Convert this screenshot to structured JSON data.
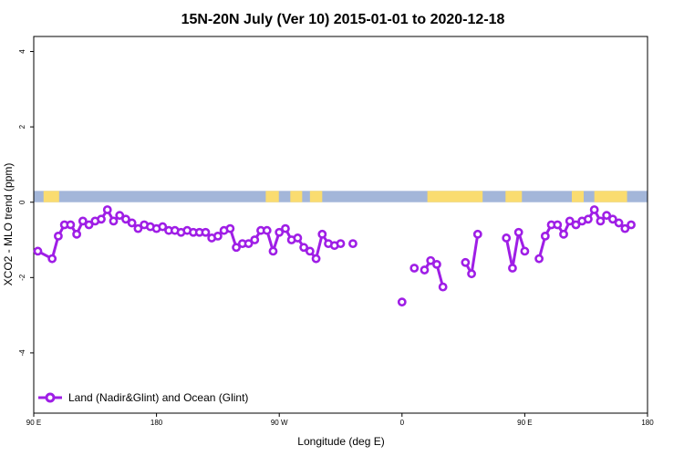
{
  "chart_data": {
    "type": "line",
    "title": "15N-20N July (Ver 10)   2015-01-01 to 2020-12-18",
    "xlabel": "Longitude (deg E)",
    "ylabel": "XCO2 - MLO trend (ppm)",
    "xlim": [
      90,
      240
    ],
    "ylim": [
      -5.6,
      4.4
    ],
    "x_ticks": [
      {
        "value": 90,
        "label": "90 E"
      },
      {
        "value": 120,
        "label": "180"
      },
      {
        "value": 150,
        "label": "90 W"
      },
      {
        "value": 180,
        "label": "0"
      },
      {
        "value": 210,
        "label": "90 E"
      },
      {
        "value": 240,
        "label": "180"
      }
    ],
    "y_ticks": [
      {
        "value": -4,
        "label": "-4"
      },
      {
        "value": -2,
        "label": "-2"
      },
      {
        "value": 0,
        "label": "0"
      },
      {
        "value": 2,
        "label": "2"
      },
      {
        "value": 4,
        "label": "4"
      }
    ],
    "grid": false,
    "legend_position": "bottom-left",
    "land_band": {
      "y_range": [
        0,
        0.3
      ],
      "ocean_color": "#a3b6d9",
      "land_color": "#fadc70",
      "land_x": [
        [
          92.4,
          96.2
        ],
        [
          146.7,
          149.9
        ],
        [
          152.7,
          155.6
        ],
        [
          157.5,
          160.5
        ],
        [
          186.2,
          199.7
        ],
        [
          205.3,
          209.3
        ],
        [
          221.5,
          224.4
        ],
        [
          227,
          235
        ]
      ]
    },
    "series": [
      {
        "name": "Land (Nadir&Glint) and Ocean (Glint)",
        "color": "#9f1ee6",
        "segments": [
          [
            [
              91,
              -1.3
            ],
            [
              94.5,
              -1.5
            ],
            [
              96,
              -0.9
            ],
            [
              97.5,
              -0.6
            ],
            [
              99,
              -0.6
            ],
            [
              100.5,
              -0.85
            ],
            [
              102,
              -0.5
            ],
            [
              103.5,
              -0.6
            ],
            [
              105,
              -0.5
            ],
            [
              106.5,
              -0.45
            ],
            [
              108,
              -0.2
            ],
            [
              109.5,
              -0.5
            ],
            [
              111,
              -0.35
            ],
            [
              112.5,
              -0.45
            ],
            [
              114,
              -0.55
            ],
            [
              115.5,
              -0.7
            ],
            [
              117,
              -0.6
            ],
            [
              118.5,
              -0.65
            ],
            [
              120,
              -0.7
            ],
            [
              121.5,
              -0.65
            ],
            [
              123,
              -0.75
            ],
            [
              124.5,
              -0.75
            ],
            [
              126,
              -0.8
            ],
            [
              127.5,
              -0.75
            ],
            [
              129,
              -0.8
            ],
            [
              130.5,
              -0.8
            ],
            [
              132,
              -0.8
            ],
            [
              133.5,
              -0.95
            ],
            [
              135,
              -0.9
            ],
            [
              136.5,
              -0.75
            ],
            [
              138,
              -0.7
            ],
            [
              139.5,
              -1.2
            ],
            [
              141,
              -1.1
            ],
            [
              142.5,
              -1.1
            ],
            [
              144,
              -1.0
            ],
            [
              145.5,
              -0.75
            ],
            [
              147,
              -0.75
            ],
            [
              148.5,
              -1.3
            ],
            [
              150,
              -0.8
            ],
            [
              151.5,
              -0.7
            ],
            [
              153,
              -1.0
            ],
            [
              154.5,
              -0.95
            ],
            [
              156,
              -1.2
            ],
            [
              157.5,
              -1.3
            ],
            [
              159,
              -1.5
            ],
            [
              160.5,
              -0.85
            ],
            [
              162,
              -1.1
            ],
            [
              163.5,
              -1.15
            ],
            [
              165,
              -1.1
            ]
          ],
          [
            [
              168,
              -1.1
            ]
          ],
          [
            [
              180,
              -2.65
            ]
          ],
          [
            [
              183,
              -1.75
            ]
          ],
          [
            [
              185.5,
              -1.8
            ],
            [
              187,
              -1.55
            ],
            [
              188.5,
              -1.65
            ],
            [
              190,
              -2.25
            ]
          ],
          [
            [
              195.5,
              -1.6
            ],
            [
              197,
              -1.9
            ],
            [
              198.5,
              -0.85
            ]
          ],
          [
            [
              205.5,
              -0.95
            ],
            [
              207,
              -1.75
            ],
            [
              208.5,
              -0.8
            ],
            [
              210,
              -1.3
            ]
          ],
          [
            [
              213.5,
              -1.5
            ],
            [
              215,
              -0.9
            ],
            [
              216.5,
              -0.6
            ],
            [
              218,
              -0.6
            ],
            [
              219.5,
              -0.85
            ],
            [
              221,
              -0.5
            ],
            [
              222.5,
              -0.6
            ],
            [
              224,
              -0.5
            ],
            [
              225.5,
              -0.45
            ],
            [
              227,
              -0.2
            ],
            [
              228.5,
              -0.5
            ],
            [
              230,
              -0.35
            ],
            [
              231.5,
              -0.45
            ],
            [
              233,
              -0.55
            ],
            [
              234.5,
              -0.7
            ],
            [
              236,
              -0.6
            ]
          ]
        ]
      }
    ]
  }
}
